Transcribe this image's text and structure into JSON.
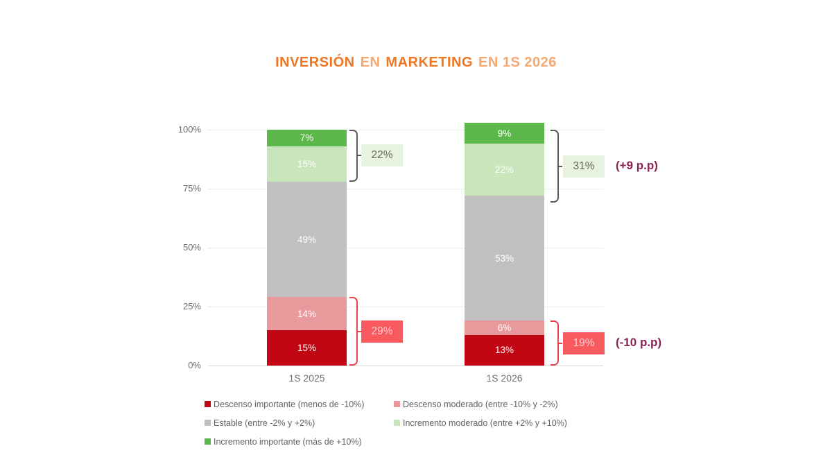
{
  "header": {
    "title_parts": {
      "p1": "INVERSIÓN",
      "p2": "EN",
      "p3": "MARKETING",
      "p4": "EN 1S 2026"
    }
  },
  "chart_data": {
    "type": "stacked_bar",
    "title": "INVERSIÓN EN MARKETING EN 1S 2026",
    "categories": [
      "1S 2025",
      "1S 2026"
    ],
    "yticks": [
      "0%",
      "25%",
      "50%",
      "75%",
      "100%"
    ],
    "ylim": [
      0,
      100
    ],
    "grid": "horizontal-dotted",
    "legend_position": "bottom-left-two-columns",
    "series": [
      {
        "name": "Descenso importante (menos de -10%)",
        "color": "#c10613",
        "values": [
          15,
          13
        ]
      },
      {
        "name": "Descenso moderado (entre -10% y -2%)",
        "color": "#e8999b",
        "values": [
          14,
          6
        ]
      },
      {
        "name": "Estable (entre -2% y +2%)",
        "color": "#c0c0c0",
        "values": [
          49,
          53
        ]
      },
      {
        "name": "Incremento moderado (entre +2% y +10%)",
        "color": "#c9e5bb",
        "values": [
          15,
          22
        ]
      },
      {
        "name": "Incremento importante (más de +10%)",
        "color": "#5cb84a",
        "values": [
          7,
          9
        ]
      }
    ],
    "brackets": [
      {
        "bar": 0,
        "side": "top",
        "span": 22,
        "label": "22%",
        "style": "green"
      },
      {
        "bar": 0,
        "side": "bottom",
        "span": 29,
        "label": "29%",
        "style": "red"
      },
      {
        "bar": 1,
        "side": "top",
        "span": 31,
        "label": "31%",
        "style": "green",
        "note": "(+9 p.p)"
      },
      {
        "bar": 1,
        "side": "bottom",
        "span": 19,
        "label": "19%",
        "style": "red",
        "note": "(-10 p.p)"
      }
    ]
  },
  "colors": {
    "title_strong": "#ee7623",
    "title_light": "#f4a469",
    "axis_text": "#6e6e6e",
    "legend_text": "#636363",
    "bracket_dark": "#5b5b5b",
    "bracket_red": "#e6454f",
    "green_box_bg": "#e7f3e0",
    "green_box_text": "#6b645a",
    "red_box_bg": "#f95a60",
    "red_box_text": "#ffc9cc",
    "note_color": "#8c2156",
    "segment_label": "#ffffff"
  }
}
